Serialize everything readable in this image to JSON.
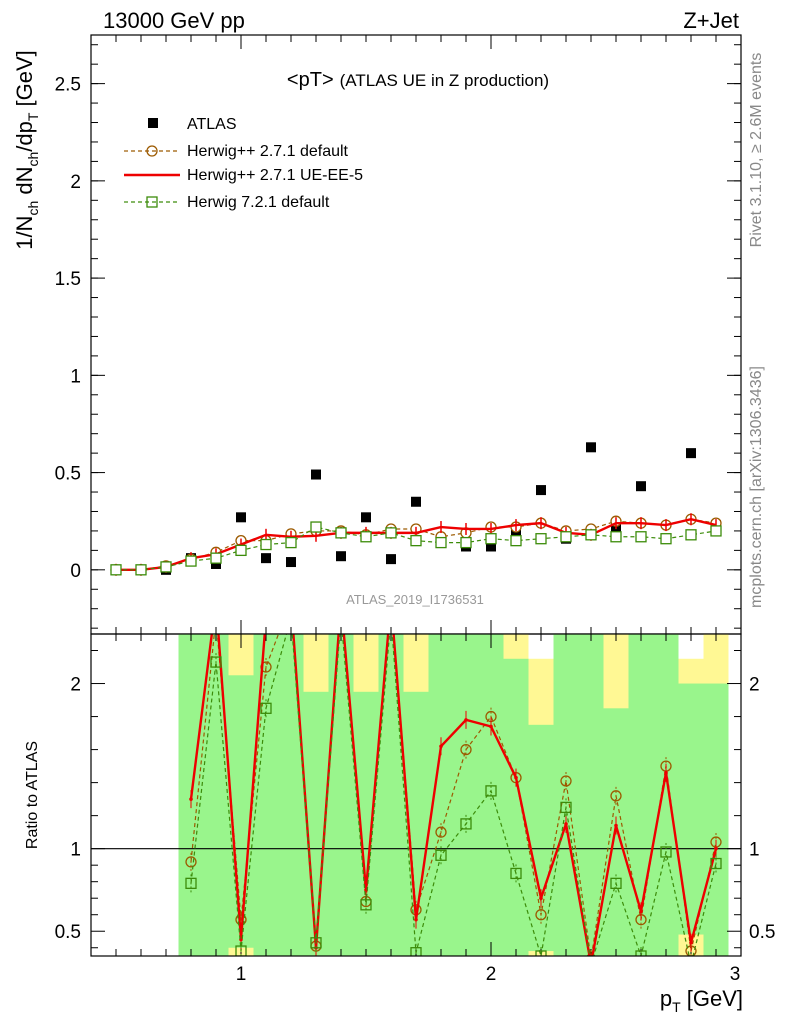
{
  "header": {
    "energy_label": "13000 GeV pp",
    "process_label": "Z+Jet",
    "rivet_label": "Rivet 3.1.10, ≥ 2.6M events",
    "source_label": "mcplots.cern.ch [arXiv:1306.3436]",
    "analysis_id": "ATLAS_2019_I1736531"
  },
  "colors": {
    "atlas": "#000000",
    "herwigpp_default": "#9c5a00",
    "herwigpp_ueee5": "#ee0000",
    "herwig721_default": "#3c8c0a",
    "band_inner": "#99f58c",
    "band_outer": "#fff894"
  },
  "chart_data": [
    {
      "type": "scatter",
      "title_main": "<pT>",
      "title_sub": "(ATLAS UE in Z production)",
      "ylabel_parts": {
        "a": "1/N",
        "b": "ch",
        "c": " dN",
        "d": "ch",
        "e": "/dp",
        "f": "T",
        "g": " [GeV]"
      },
      "ylim": [
        -0.33,
        2.75
      ],
      "yticks": [
        0,
        0.5,
        1,
        1.5,
        2,
        2.5
      ],
      "ytick_labels": [
        "0",
        "0.5",
        "1",
        "1.5",
        "2",
        "2.5"
      ],
      "xlim": [
        0.4,
        3.0
      ],
      "x": [
        0.5,
        0.6,
        0.7,
        0.8,
        0.9,
        1.0,
        1.1,
        1.2,
        1.3,
        1.4,
        1.5,
        1.6,
        1.7,
        1.8,
        1.9,
        2.0,
        2.1,
        2.2,
        2.3,
        2.4,
        2.5,
        2.6,
        2.7,
        2.8,
        2.9
      ],
      "series": [
        {
          "name": "ATLAS",
          "style": "marker-square",
          "values": [
            0.0,
            0.0,
            0.0,
            0.06,
            0.03,
            0.27,
            0.06,
            0.04,
            0.49,
            0.07,
            0.27,
            0.055,
            0.35,
            0.14,
            0.12,
            0.12,
            0.18,
            0.41,
            0.16,
            0.63,
            0.21,
            0.43,
            0.16,
            0.6,
            0.23
          ]
        },
        {
          "name": "Herwig++ 2.7.1 default",
          "style": "dashed-circle",
          "values": [
            0.0,
            0.0,
            0.02,
            0.055,
            0.09,
            0.15,
            0.15,
            0.185,
            0.2,
            0.2,
            0.18,
            0.21,
            0.21,
            0.17,
            0.19,
            0.22,
            0.22,
            0.24,
            0.2,
            0.21,
            0.25,
            0.24,
            0.23,
            0.26,
            0.24
          ]
        },
        {
          "name": "Herwig++ 2.7.1 UE-EE-5",
          "style": "solid-line",
          "values": [
            0.0,
            0.0,
            0.015,
            0.06,
            0.08,
            0.13,
            0.18,
            0.17,
            0.175,
            0.19,
            0.19,
            0.19,
            0.19,
            0.22,
            0.21,
            0.21,
            0.23,
            0.24,
            0.19,
            0.18,
            0.24,
            0.24,
            0.23,
            0.26,
            0.23
          ]
        },
        {
          "name": "Herwig 7.2.1 default",
          "style": "dashed-open-square",
          "values": [
            0.0,
            0.0,
            0.015,
            0.045,
            0.06,
            0.1,
            0.13,
            0.14,
            0.22,
            0.19,
            0.17,
            0.19,
            0.15,
            0.14,
            0.14,
            0.16,
            0.15,
            0.16,
            0.17,
            0.18,
            0.17,
            0.17,
            0.16,
            0.18,
            0.2
          ]
        }
      ]
    },
    {
      "type": "line",
      "ylabel": "Ratio to ATLAS",
      "ylim": [
        0.35,
        2.3
      ],
      "yticks": [
        0.5,
        1,
        2
      ],
      "ytick_labels": [
        "0.5",
        "1",
        "2"
      ],
      "xlim": [
        0.4,
        3.0
      ],
      "xticks": [
        1,
        2,
        3
      ],
      "xtick_labels": [
        "1",
        "2",
        "3"
      ],
      "xlabel_parts": {
        "a": "p",
        "b": "T",
        "c": " [GeV]"
      },
      "reference_line": 1,
      "x": [
        0.8,
        0.9,
        1.0,
        1.1,
        1.2,
        1.3,
        1.4,
        1.5,
        1.6,
        1.7,
        1.8,
        1.9,
        2.0,
        2.1,
        2.2,
        2.3,
        2.4,
        2.5,
        2.6,
        2.7,
        2.8,
        2.9
      ],
      "bands": [
        {
          "x0": 0.75,
          "x1": 0.85,
          "inner": [
            0.35,
            2.3
          ],
          "outer": [
            0.35,
            2.3
          ]
        },
        {
          "x0": 0.85,
          "x1": 0.95,
          "inner": [
            0.35,
            2.3
          ],
          "outer": [
            0.35,
            2.3
          ]
        },
        {
          "x0": 0.95,
          "x1": 1.05,
          "inner": [
            0.4,
            2.05
          ],
          "outer": [
            0.35,
            2.3
          ]
        },
        {
          "x0": 1.05,
          "x1": 1.15,
          "inner": [
            0.35,
            2.3
          ],
          "outer": [
            0.35,
            2.3
          ]
        },
        {
          "x0": 1.15,
          "x1": 1.25,
          "inner": [
            0.35,
            2.3
          ],
          "outer": [
            0.35,
            2.3
          ]
        },
        {
          "x0": 1.25,
          "x1": 1.35,
          "inner": [
            0.35,
            1.95
          ],
          "outer": [
            0.35,
            2.3
          ]
        },
        {
          "x0": 1.35,
          "x1": 1.45,
          "inner": [
            0.35,
            2.3
          ],
          "outer": [
            0.35,
            2.3
          ]
        },
        {
          "x0": 1.45,
          "x1": 1.55,
          "inner": [
            0.35,
            1.95
          ],
          "outer": [
            0.35,
            2.3
          ]
        },
        {
          "x0": 1.55,
          "x1": 1.65,
          "inner": [
            0.35,
            2.3
          ],
          "outer": [
            0.35,
            2.3
          ]
        },
        {
          "x0": 1.65,
          "x1": 1.75,
          "inner": [
            0.35,
            1.95
          ],
          "outer": [
            0.35,
            2.3
          ]
        },
        {
          "x0": 1.75,
          "x1": 1.85,
          "inner": [
            0.35,
            2.3
          ],
          "outer": [
            0.35,
            2.3
          ]
        },
        {
          "x0": 1.85,
          "x1": 1.95,
          "inner": [
            0.35,
            2.3
          ],
          "outer": [
            0.35,
            2.3
          ]
        },
        {
          "x0": 1.95,
          "x1": 2.05,
          "inner": [
            0.35,
            2.3
          ],
          "outer": [
            0.35,
            2.3
          ]
        },
        {
          "x0": 2.05,
          "x1": 2.15,
          "inner": [
            0.35,
            2.15
          ],
          "outer": [
            0.35,
            2.3
          ]
        },
        {
          "x0": 2.15,
          "x1": 2.25,
          "inner": [
            0.38,
            1.75
          ],
          "outer": [
            0.35,
            2.15
          ]
        },
        {
          "x0": 2.25,
          "x1": 2.35,
          "inner": [
            0.35,
            2.3
          ],
          "outer": [
            0.35,
            2.3
          ]
        },
        {
          "x0": 2.35,
          "x1": 2.45,
          "inner": [
            0.35,
            2.3
          ],
          "outer": [
            0.35,
            2.3
          ]
        },
        {
          "x0": 2.45,
          "x1": 2.55,
          "inner": [
            0.35,
            1.85
          ],
          "outer": [
            0.35,
            2.3
          ]
        },
        {
          "x0": 2.55,
          "x1": 2.65,
          "inner": [
            0.35,
            2.3
          ],
          "outer": [
            0.35,
            2.3
          ]
        },
        {
          "x0": 2.65,
          "x1": 2.75,
          "inner": [
            0.35,
            2.3
          ],
          "outer": [
            0.35,
            2.3
          ]
        },
        {
          "x0": 2.75,
          "x1": 2.85,
          "inner": [
            0.48,
            2.0
          ],
          "outer": [
            0.35,
            2.15
          ]
        },
        {
          "x0": 2.85,
          "x1": 2.95,
          "inner": [
            0.35,
            2.0
          ],
          "outer": [
            0.35,
            2.3
          ]
        }
      ],
      "series": [
        {
          "name": "Herwig++ 2.7.1 default",
          "style": "dashed-circle",
          "values": [
            0.92,
            2.4,
            0.57,
            2.1,
            2.5,
            0.41,
            2.5,
            0.68,
            2.5,
            0.63,
            1.1,
            1.6,
            1.8,
            1.43,
            0.6,
            1.41,
            0.33,
            1.32,
            0.57,
            1.5,
            0.38,
            1.04
          ]
        },
        {
          "name": "Herwig++ 2.7.1 UE-EE-5",
          "style": "solid-line",
          "values": [
            1.3,
            2.5,
            0.45,
            2.4,
            2.5,
            0.4,
            2.5,
            0.75,
            2.5,
            0.57,
            1.62,
            1.78,
            1.74,
            1.43,
            0.7,
            1.15,
            0.3,
            1.14,
            0.62,
            1.46,
            0.43,
            1.0
          ]
        },
        {
          "name": "Herwig 7.2.1 default",
          "style": "dashed-open-square",
          "values": [
            0.79,
            2.13,
            0.38,
            1.85,
            2.4,
            0.43,
            2.4,
            0.66,
            2.4,
            0.37,
            0.96,
            1.15,
            1.35,
            0.85,
            0.35,
            1.25,
            0.3,
            0.79,
            0.35,
            0.98,
            0.3,
            0.91
          ]
        }
      ]
    }
  ]
}
